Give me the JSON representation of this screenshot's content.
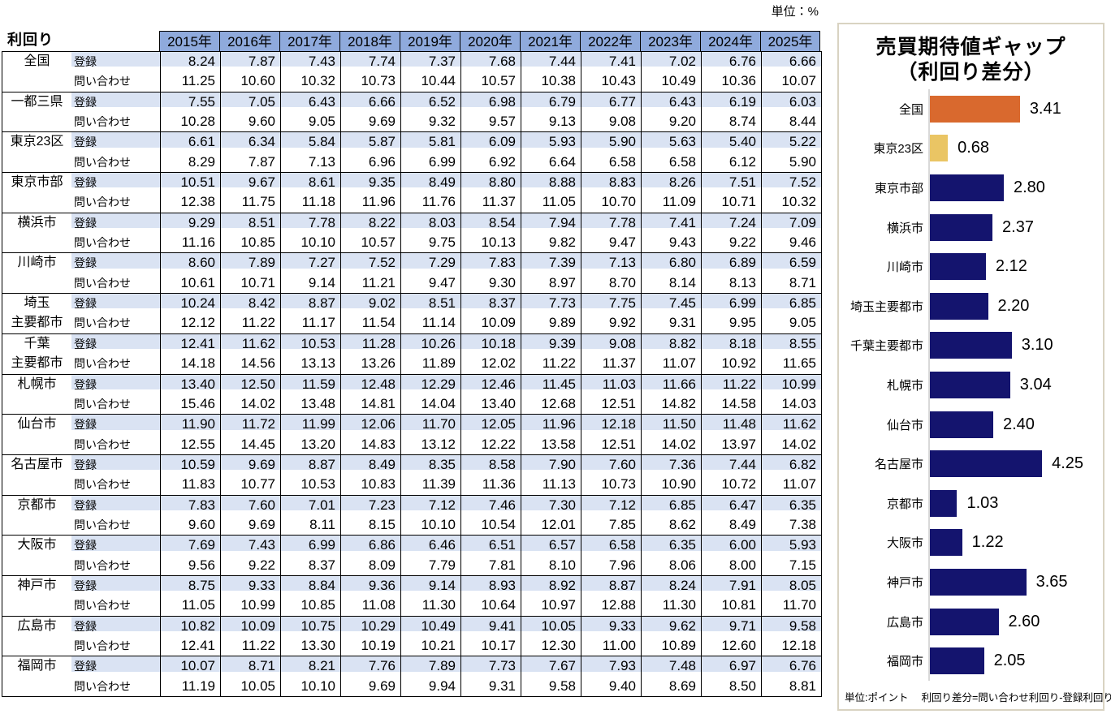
{
  "colors": {
    "header_bg": "#8FAADC",
    "registered_row_bg": "#DAE3F3",
    "bar_navy": "#14146E",
    "bar_orange": "#D9692E",
    "bar_yellow": "#EAC564",
    "panel_border": "#D9D3C2",
    "axis_line": "#D9D9D9"
  },
  "chart_data": [
    {
      "type": "table",
      "title": "利回り",
      "unit": "単位：%",
      "columns": [
        "2015年",
        "2016年",
        "2017年",
        "2018年",
        "2019年",
        "2020年",
        "2021年",
        "2022年",
        "2023年",
        "2024年",
        "2025年"
      ],
      "row_types": [
        {
          "key": "registered",
          "label": "登録"
        },
        {
          "key": "inquiry",
          "label": "問い合わせ"
        }
      ],
      "rows": [
        {
          "region": "全国",
          "region_lines": [
            "全国"
          ],
          "registered": [
            "8.24",
            "7.87",
            "7.43",
            "7.74",
            "7.37",
            "7.68",
            "7.44",
            "7.41",
            "7.02",
            "6.76",
            "6.66"
          ],
          "inquiry": [
            "11.25",
            "10.60",
            "10.32",
            "10.73",
            "10.44",
            "10.57",
            "10.38",
            "10.43",
            "10.49",
            "10.36",
            "10.07"
          ]
        },
        {
          "region": "一都三県",
          "region_lines": [
            "一都三県"
          ],
          "registered": [
            "7.55",
            "7.05",
            "6.43",
            "6.66",
            "6.52",
            "6.98",
            "6.79",
            "6.77",
            "6.43",
            "6.19",
            "6.03"
          ],
          "inquiry": [
            "10.28",
            "9.60",
            "9.05",
            "9.69",
            "9.32",
            "9.57",
            "9.13",
            "9.08",
            "9.20",
            "8.74",
            "8.44"
          ]
        },
        {
          "region": "東京23区",
          "region_lines": [
            "東京23区"
          ],
          "registered": [
            "6.61",
            "6.34",
            "5.84",
            "5.87",
            "5.81",
            "6.09",
            "5.93",
            "5.90",
            "5.63",
            "5.40",
            "5.22"
          ],
          "inquiry": [
            "8.29",
            "7.87",
            "7.13",
            "6.96",
            "6.99",
            "6.92",
            "6.64",
            "6.58",
            "6.58",
            "6.12",
            "5.90"
          ]
        },
        {
          "region": "東京市部",
          "region_lines": [
            "東京市部"
          ],
          "registered": [
            "10.51",
            "9.67",
            "8.61",
            "9.35",
            "8.49",
            "8.80",
            "8.88",
            "8.83",
            "8.26",
            "7.51",
            "7.52"
          ],
          "inquiry": [
            "12.38",
            "11.75",
            "11.18",
            "11.96",
            "11.76",
            "11.37",
            "11.05",
            "10.70",
            "11.09",
            "10.71",
            "10.32"
          ]
        },
        {
          "region": "横浜市",
          "region_lines": [
            "横浜市"
          ],
          "registered": [
            "9.29",
            "8.51",
            "7.78",
            "8.22",
            "8.03",
            "8.54",
            "7.94",
            "7.78",
            "7.41",
            "7.24",
            "7.09"
          ],
          "inquiry": [
            "11.16",
            "10.85",
            "10.10",
            "10.57",
            "9.75",
            "10.13",
            "9.82",
            "9.47",
            "9.43",
            "9.22",
            "9.46"
          ]
        },
        {
          "region": "川崎市",
          "region_lines": [
            "川崎市"
          ],
          "registered": [
            "8.60",
            "7.89",
            "7.27",
            "7.52",
            "7.29",
            "7.83",
            "7.39",
            "7.13",
            "6.80",
            "6.89",
            "6.59"
          ],
          "inquiry": [
            "10.61",
            "10.71",
            "9.14",
            "11.21",
            "9.47",
            "9.30",
            "8.97",
            "8.70",
            "8.14",
            "8.13",
            "8.71"
          ]
        },
        {
          "region": "埼玉主要都市",
          "region_lines": [
            "埼玉",
            "主要都市"
          ],
          "registered": [
            "10.24",
            "8.42",
            "8.87",
            "9.02",
            "8.51",
            "8.37",
            "7.73",
            "7.75",
            "7.45",
            "6.99",
            "6.85"
          ],
          "inquiry": [
            "12.12",
            "11.22",
            "11.17",
            "11.54",
            "11.14",
            "10.09",
            "9.89",
            "9.92",
            "9.31",
            "9.95",
            "9.05"
          ]
        },
        {
          "region": "千葉主要都市",
          "region_lines": [
            "千葉",
            "主要都市"
          ],
          "registered": [
            "12.41",
            "11.62",
            "10.53",
            "11.28",
            "10.26",
            "10.18",
            "9.39",
            "9.08",
            "8.82",
            "8.18",
            "8.55"
          ],
          "inquiry": [
            "14.18",
            "14.56",
            "13.13",
            "13.26",
            "11.89",
            "12.02",
            "11.22",
            "11.37",
            "11.07",
            "10.92",
            "11.65"
          ]
        },
        {
          "region": "札幌市",
          "region_lines": [
            "札幌市"
          ],
          "registered": [
            "13.40",
            "12.50",
            "11.59",
            "12.48",
            "12.29",
            "12.46",
            "11.45",
            "11.03",
            "11.66",
            "11.22",
            "10.99"
          ],
          "inquiry": [
            "15.46",
            "14.02",
            "13.48",
            "14.81",
            "14.04",
            "13.40",
            "12.68",
            "12.51",
            "14.82",
            "14.58",
            "14.03"
          ]
        },
        {
          "region": "仙台市",
          "region_lines": [
            "仙台市"
          ],
          "registered": [
            "11.90",
            "11.72",
            "11.99",
            "12.06",
            "11.70",
            "12.05",
            "11.96",
            "12.18",
            "11.50",
            "11.48",
            "11.62"
          ],
          "inquiry": [
            "12.55",
            "14.45",
            "13.20",
            "14.83",
            "13.12",
            "12.22",
            "13.58",
            "12.51",
            "14.02",
            "13.97",
            "14.02"
          ]
        },
        {
          "region": "名古屋市",
          "region_lines": [
            "名古屋市"
          ],
          "registered": [
            "10.59",
            "9.69",
            "8.87",
            "8.49",
            "8.35",
            "8.58",
            "7.90",
            "7.60",
            "7.36",
            "7.44",
            "6.82"
          ],
          "inquiry": [
            "11.83",
            "10.77",
            "10.53",
            "10.83",
            "11.39",
            "11.36",
            "11.13",
            "10.73",
            "10.90",
            "10.72",
            "11.07"
          ]
        },
        {
          "region": "京都市",
          "region_lines": [
            "京都市"
          ],
          "registered": [
            "7.83",
            "7.60",
            "7.01",
            "7.23",
            "7.12",
            "7.46",
            "7.30",
            "7.12",
            "6.85",
            "6.47",
            "6.35"
          ],
          "inquiry": [
            "9.60",
            "9.69",
            "8.11",
            "8.15",
            "10.10",
            "10.54",
            "12.01",
            "7.85",
            "8.62",
            "8.49",
            "7.38"
          ]
        },
        {
          "region": "大阪市",
          "region_lines": [
            "大阪市"
          ],
          "registered": [
            "7.69",
            "7.43",
            "6.99",
            "6.86",
            "6.46",
            "6.51",
            "6.57",
            "6.58",
            "6.35",
            "6.00",
            "5.93"
          ],
          "inquiry": [
            "9.56",
            "9.22",
            "8.37",
            "8.09",
            "7.79",
            "7.81",
            "8.10",
            "7.96",
            "8.06",
            "8.00",
            "7.15"
          ]
        },
        {
          "region": "神戸市",
          "region_lines": [
            "神戸市"
          ],
          "registered": [
            "8.75",
            "9.33",
            "8.84",
            "9.36",
            "9.14",
            "8.93",
            "8.92",
            "8.87",
            "8.24",
            "7.91",
            "8.05"
          ],
          "inquiry": [
            "11.05",
            "10.99",
            "10.85",
            "11.08",
            "11.30",
            "10.64",
            "10.97",
            "12.88",
            "11.30",
            "10.81",
            "11.70"
          ]
        },
        {
          "region": "広島市",
          "region_lines": [
            "広島市"
          ],
          "registered": [
            "10.82",
            "10.09",
            "10.75",
            "10.29",
            "10.49",
            "9.41",
            "10.05",
            "9.33",
            "9.62",
            "9.71",
            "9.58"
          ],
          "inquiry": [
            "12.41",
            "11.22",
            "13.30",
            "10.19",
            "10.21",
            "10.17",
            "12.30",
            "11.00",
            "10.89",
            "12.60",
            "12.18"
          ]
        },
        {
          "region": "福岡市",
          "region_lines": [
            "福岡市"
          ],
          "registered": [
            "10.07",
            "8.71",
            "8.21",
            "7.76",
            "7.89",
            "7.73",
            "7.67",
            "7.93",
            "7.48",
            "6.97",
            "6.76"
          ],
          "inquiry": [
            "11.19",
            "10.05",
            "10.10",
            "9.69",
            "9.94",
            "9.31",
            "9.58",
            "9.40",
            "8.69",
            "8.50",
            "8.81"
          ]
        }
      ]
    },
    {
      "type": "bar",
      "orientation": "horizontal",
      "title": "売買期待値ギャップ",
      "subtitle": "（利回り差分）",
      "footnote": "単位:ポイント　 利回り差分=問い合わせ利回り-登録利回り",
      "xlim": [
        0,
        4.6
      ],
      "categories": [
        "全国",
        "東京23区",
        "東京市部",
        "横浜市",
        "川崎市",
        "埼玉主要都市",
        "千葉主要都市",
        "札幌市",
        "仙台市",
        "名古屋市",
        "京都市",
        "大阪市",
        "神戸市",
        "広島市",
        "福岡市"
      ],
      "values": [
        3.41,
        0.68,
        2.8,
        2.37,
        2.12,
        2.2,
        3.1,
        3.04,
        2.4,
        4.25,
        1.03,
        1.22,
        3.65,
        2.6,
        2.05
      ],
      "value_labels": [
        "3.41",
        "0.68",
        "2.80",
        "2.37",
        "2.12",
        "2.20",
        "3.10",
        "3.04",
        "2.40",
        "4.25",
        "1.03",
        "1.22",
        "3.65",
        "2.60",
        "2.05"
      ],
      "bar_colors": [
        "#D9692E",
        "#EAC564",
        "#14146E",
        "#14146E",
        "#14146E",
        "#14146E",
        "#14146E",
        "#14146E",
        "#14146E",
        "#14146E",
        "#14146E",
        "#14146E",
        "#14146E",
        "#14146E",
        "#14146E"
      ]
    }
  ]
}
